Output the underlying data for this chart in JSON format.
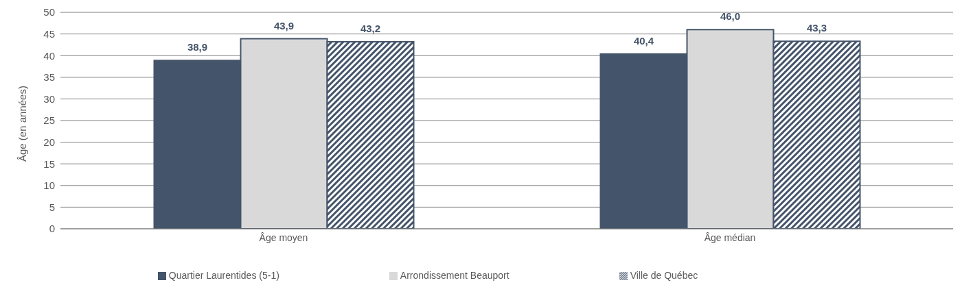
{
  "chart_data": {
    "type": "bar",
    "ylabel": "Âge (en années)",
    "categories": [
      "Âge moyen",
      "Âge médian"
    ],
    "series": [
      {
        "name": "Quartier Laurentides (5-1)",
        "color": "#44546a",
        "values": [
          38.9,
          40.4
        ],
        "value_labels": [
          "38,9",
          "40,4"
        ]
      },
      {
        "name": "Arrondissement Beauport",
        "color": "#d9d9d9",
        "values": [
          43.9,
          46.0
        ],
        "value_labels": [
          "43,9",
          "46,0"
        ]
      },
      {
        "name": "Ville de Québec",
        "color": "#44546a",
        "values": [
          43.2,
          43.3
        ],
        "value_labels": [
          "43,2",
          "43,3"
        ]
      }
    ],
    "ylim": [
      0,
      50
    ],
    "yticks": [
      0,
      5,
      10,
      15,
      20,
      25,
      30,
      35,
      40,
      45,
      50
    ],
    "grid": "y",
    "legend": "bottom"
  }
}
